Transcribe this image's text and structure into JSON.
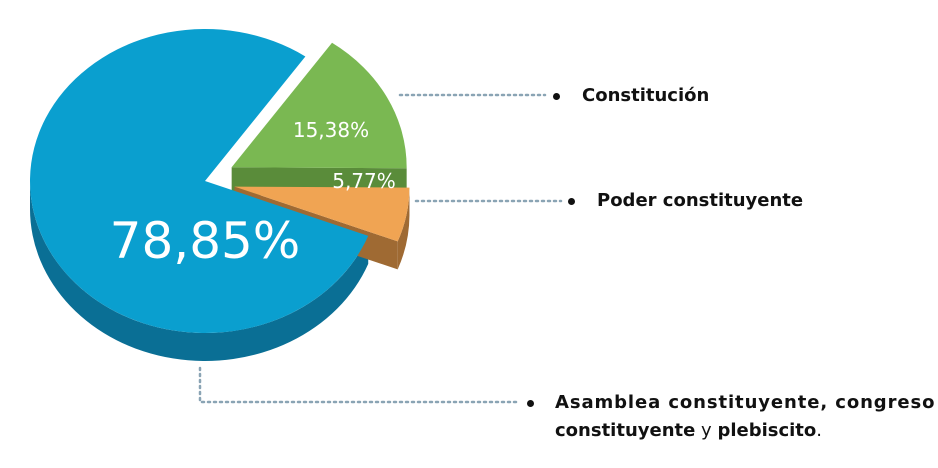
{
  "chart_data": {
    "type": "pie",
    "style": "3d-exploded",
    "slices": [
      {
        "label": "Asamblea constituyente, congreso constituyente y plebiscito.",
        "value": 78.85,
        "display": "78,85%",
        "color": "#0a9fcf",
        "side_color": "#0a6f95"
      },
      {
        "label": "Constitución",
        "value": 15.38,
        "display": "15,38%",
        "color": "#7ab852",
        "side_color": "#5a8c3a"
      },
      {
        "label": "Poder constituyente",
        "value": 5.77,
        "display": "5,77%",
        "color": "#f0a453",
        "side_color": "#9f6a33"
      }
    ],
    "leader_line_color": "#8aa4b4"
  },
  "legend": {
    "constitucion": "Constitución",
    "poder": "Poder constituyente",
    "asamblea_line1": "Asamblea constituyente, congreso",
    "asamblea_line2a": "constituyente",
    "asamblea_line2b": " y ",
    "asamblea_line2c": "plebiscito",
    "asamblea_line2d": "."
  }
}
